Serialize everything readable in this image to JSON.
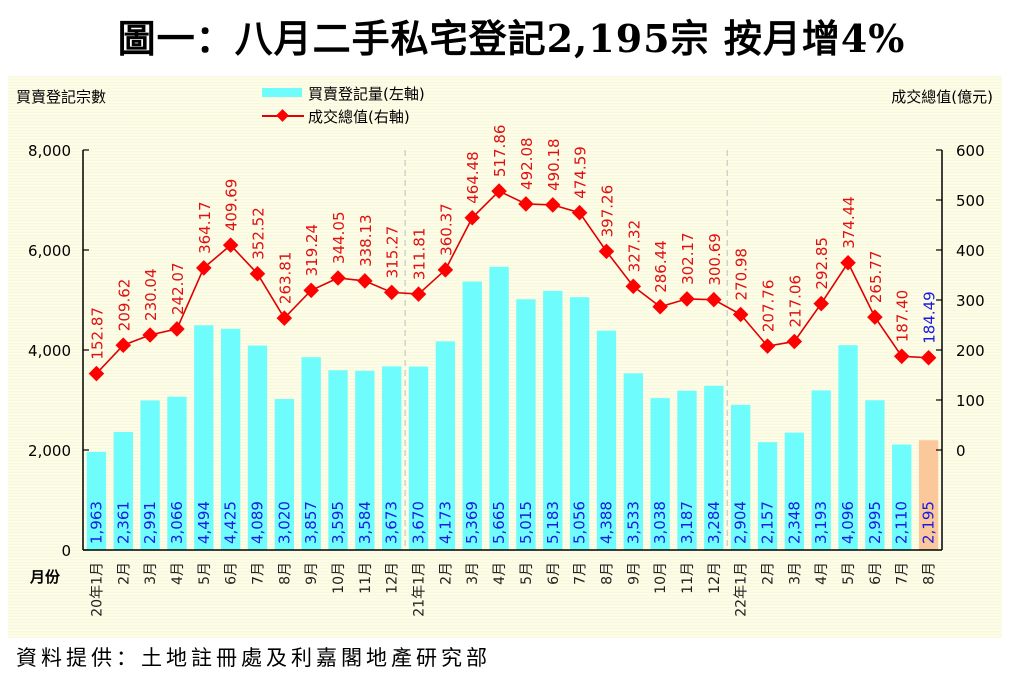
{
  "title": "圖一：八月二手私宅登記2,195宗  按月增4%",
  "source": "資料提供：土地註冊處及利嘉閣地產研究部",
  "colors": {
    "bar": "#6ffcfc",
    "bar_highlight": "#fbc89c",
    "line": "#e00000",
    "marker": "#ff0000",
    "line_label": "#e01010",
    "last_line_label": "#1a1ae0",
    "bar_label": "#1a1ae0",
    "background": "#fdfde6"
  },
  "chart_data": {
    "type": "bar+line",
    "title": "圖一：八月二手私宅登記2,195宗  按月增4%",
    "ylabel_left": "買賣登記宗數",
    "ylabel_right": "成交總值(億元)",
    "xlabel": "月份",
    "ylim_left": [
      0,
      8000
    ],
    "yticks_left": [
      "0",
      "2,000",
      "4,000",
      "6,000",
      "8,000"
    ],
    "ylim_right": [
      -200,
      600
    ],
    "yticks_right": [
      "0",
      "100",
      "200",
      "300",
      "400",
      "500",
      "600"
    ],
    "legend": [
      {
        "name": "買賣登記量(左軸)",
        "kind": "bar"
      },
      {
        "name": "成交總值(右軸)",
        "kind": "line"
      }
    ],
    "legend_position": "top-center",
    "year_separators_before": [
      "21年1月",
      "22年1月"
    ],
    "categories": [
      "20年1月",
      "2月",
      "3月",
      "4月",
      "5月",
      "6月",
      "7月",
      "8月",
      "9月",
      "10月",
      "11月",
      "12月",
      "21年1月",
      "2月",
      "3月",
      "4月",
      "5月",
      "6月",
      "7月",
      "8月",
      "9月",
      "10月",
      "11月",
      "12月",
      "22年1月",
      "2月",
      "3月",
      "4月",
      "5月",
      "6月",
      "7月",
      "8月"
    ],
    "series": [
      {
        "name": "買賣登記量(左軸)",
        "type": "bar",
        "axis": "left",
        "values": [
          1963,
          2361,
          2991,
          3066,
          4494,
          4425,
          4089,
          3020,
          3857,
          3595,
          3584,
          3673,
          3670,
          4173,
          5369,
          5665,
          5015,
          5183,
          5056,
          4388,
          3533,
          3038,
          3187,
          3284,
          2904,
          2157,
          2348,
          3193,
          4096,
          2995,
          2110,
          2195
        ],
        "labels": [
          "1,963",
          "2,361",
          "2,991",
          "3,066",
          "4,494",
          "4,425",
          "4,089",
          "3,020",
          "3,857",
          "3,595",
          "3,584",
          "3,673",
          "3,670",
          "4,173",
          "5,369",
          "5,665",
          "5,015",
          "5,183",
          "5,056",
          "4,388",
          "3,533",
          "3,038",
          "3,187",
          "3,284",
          "2,904",
          "2,157",
          "2,348",
          "3,193",
          "4,096",
          "2,995",
          "2,110",
          "2,195"
        ],
        "highlight_last": true
      },
      {
        "name": "成交總值(右軸)",
        "type": "line",
        "axis": "right",
        "values": [
          152.87,
          209.62,
          230.04,
          242.07,
          364.17,
          409.69,
          352.52,
          263.81,
          319.24,
          344.05,
          338.13,
          315.27,
          311.81,
          360.37,
          464.48,
          517.86,
          492.08,
          490.18,
          474.59,
          397.26,
          327.32,
          286.44,
          302.17,
          300.69,
          270.98,
          207.76,
          217.06,
          292.85,
          374.44,
          265.77,
          187.4,
          184.49
        ],
        "labels": [
          "152.87",
          "209.62",
          "230.04",
          "242.07",
          "364.17",
          "409.69",
          "352.52",
          "263.81",
          "319.24",
          "344.05",
          "338.13",
          "315.27",
          "311.81",
          "360.37",
          "464.48",
          "517.86",
          "492.08",
          "490.18",
          "474.59",
          "397.26",
          "327.32",
          "286.44",
          "302.17",
          "300.69",
          "270.98",
          "207.76",
          "217.06",
          "292.85",
          "374.44",
          "265.77",
          "187.40",
          "184.49"
        ]
      }
    ]
  }
}
